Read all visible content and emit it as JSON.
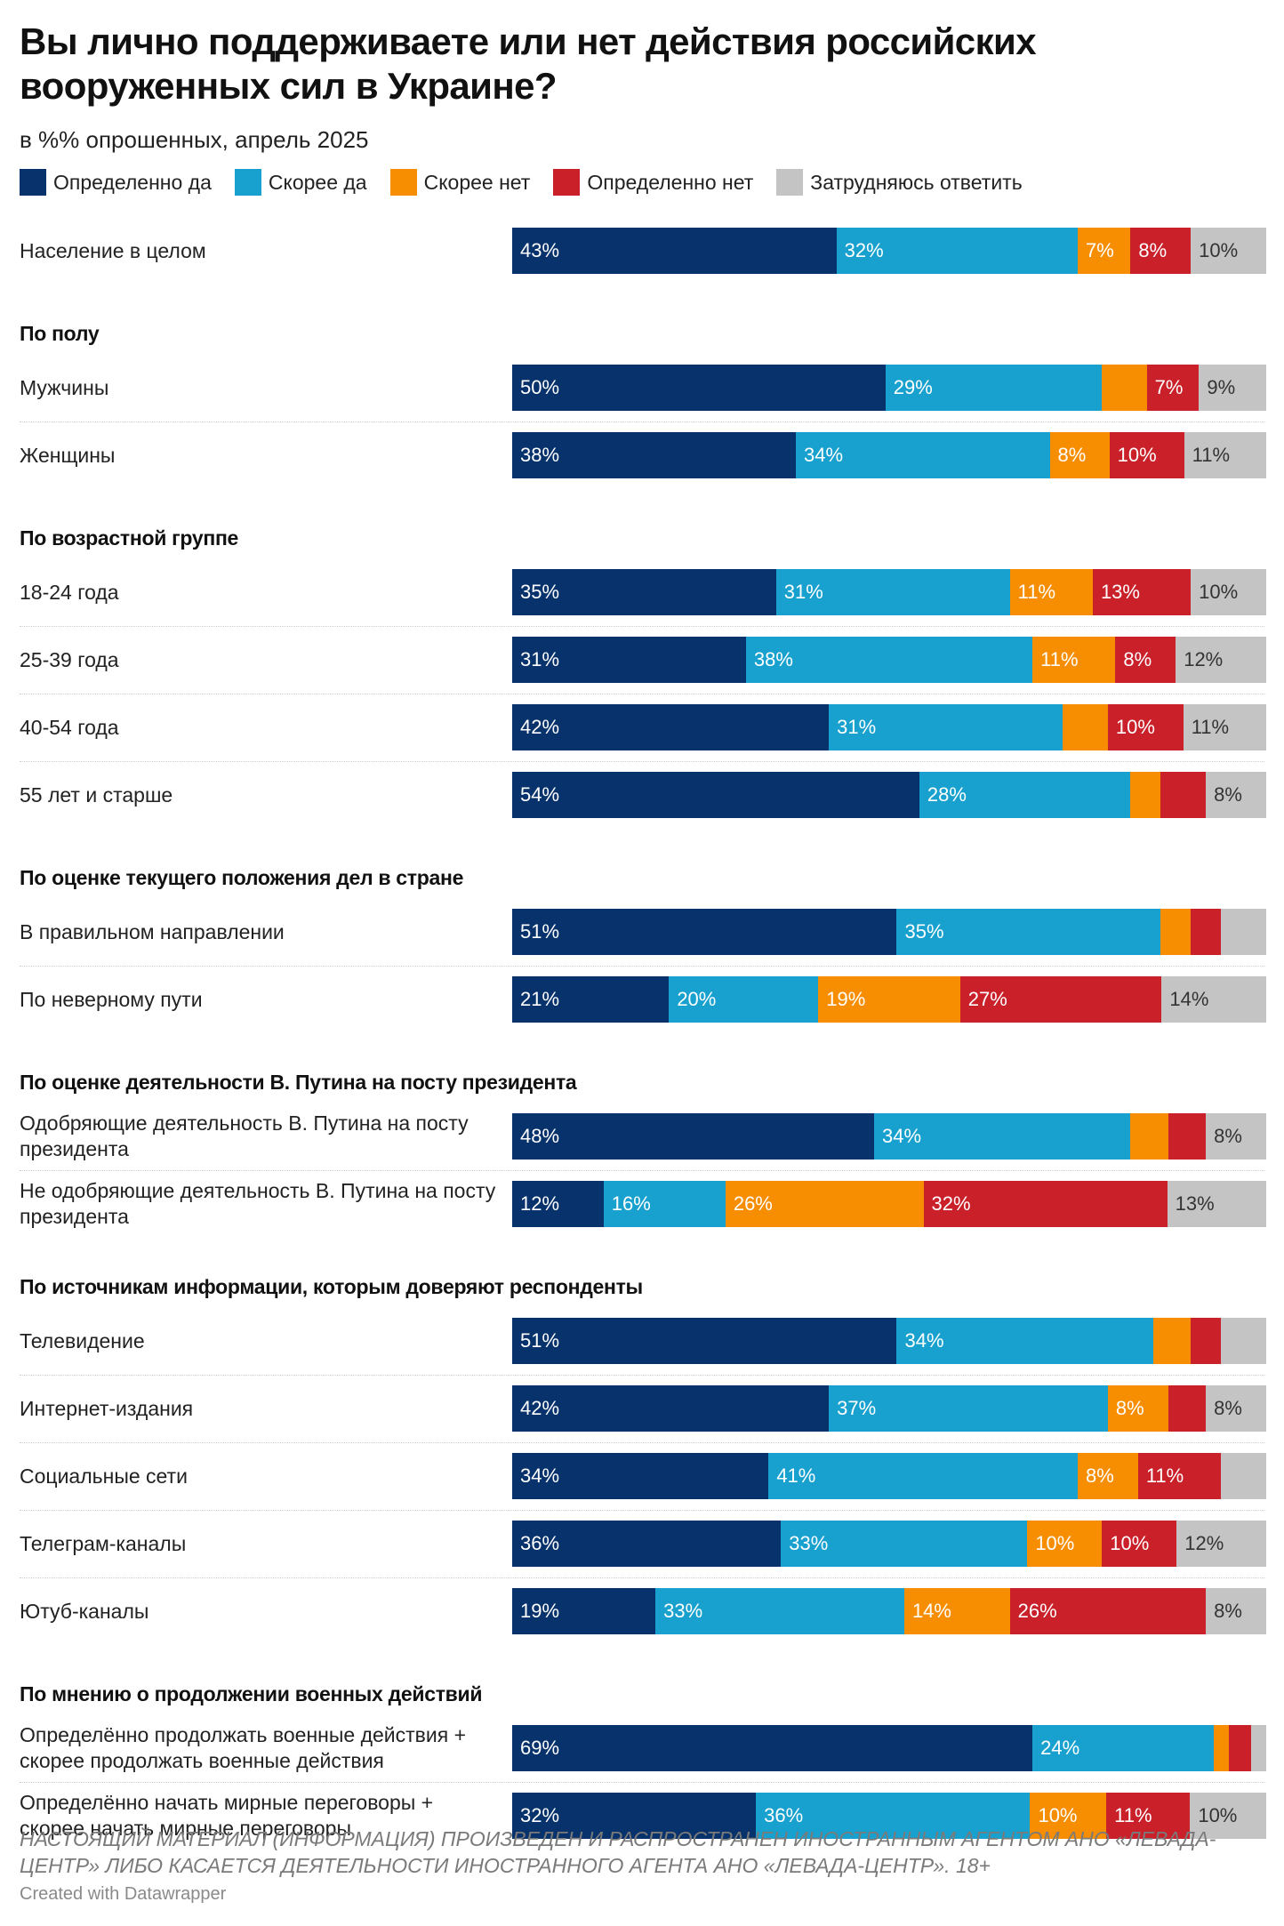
{
  "title": "Вы лично поддерживаете или нет действия российских вооруженных сил в Украине?",
  "subtitle": "в %% опрошенных, апрель 2025",
  "footnote": "НАСТОЯЩИЙ МАТЕРИАЛ (ИНФОРМАЦИЯ) ПРОИЗВЕДЕН И РАСПРОСТРАНЕН ИНОСТРАННЫМ АГЕНТОМ АНО «ЛЕВАДА-ЦЕНТР» ЛИБО КАСАЕТСЯ ДЕЯТЕЛЬНОСТИ ИНОСТРАННОГО АГЕНТА АНО «ЛЕВАДА-ЦЕНТР». 18+",
  "credit": "Created with Datawrapper",
  "chart_data": {
    "type": "bar",
    "orientation": "horizontal",
    "stacked": true,
    "normalized": true,
    "title": "Вы лично поддерживаете или нет действия российских вооруженных сил в Украине?",
    "subtitle": "в %% опрошенных, апрель 2025",
    "unit": "%",
    "legend_position": "top",
    "series": [
      {
        "name": "Определенно да",
        "color": "#08326b",
        "text_color": "#ffffff"
      },
      {
        "name": "Скорее да",
        "color": "#18a1cf",
        "text_color": "#ffffff"
      },
      {
        "name": "Скорее нет",
        "color": "#f78e02",
        "text_color": "#ffffff"
      },
      {
        "name": "Определенно нет",
        "color": "#c9202a",
        "text_color": "#ffffff"
      },
      {
        "name": "Затрудняюсь ответить",
        "color": "#c4c4c4",
        "text_color": "#333333"
      }
    ],
    "groups": [
      {
        "title": "",
        "rows": [
          {
            "label": "Население в целом",
            "values": [
              43,
              32,
              7,
              8,
              10
            ]
          }
        ]
      },
      {
        "title": "По полу",
        "rows": [
          {
            "label": "Мужчины",
            "values": [
              50,
              29,
              6,
              7,
              9
            ]
          },
          {
            "label": "Женщины",
            "values": [
              38,
              34,
              8,
              10,
              11
            ]
          }
        ]
      },
      {
        "title": "По возрастной группе",
        "rows": [
          {
            "label": "18-24 года",
            "values": [
              35,
              31,
              11,
              13,
              10
            ]
          },
          {
            "label": "25-39 года",
            "values": [
              31,
              38,
              11,
              8,
              12
            ]
          },
          {
            "label": "40-54 года",
            "values": [
              42,
              31,
              6,
              10,
              11
            ]
          },
          {
            "label": "55 лет и старше",
            "values": [
              54,
              28,
              4,
              6,
              8
            ]
          }
        ]
      },
      {
        "title": "По оценке текущего положения дел в стране",
        "rows": [
          {
            "label": "В правильном направлении",
            "values": [
              51,
              35,
              4,
              4,
              6
            ]
          },
          {
            "label": "По неверному пути",
            "values": [
              21,
              20,
              19,
              27,
              14
            ]
          }
        ]
      },
      {
        "title": "По оценке деятельности В. Путина на посту президента",
        "rows": [
          {
            "label": "Одобряющие деятельность В. Путина на посту президента",
            "values": [
              48,
              34,
              5,
              5,
              8
            ]
          },
          {
            "label": "Не одобряющие деятельность В. Путина на посту президента",
            "values": [
              12,
              16,
              26,
              32,
              13
            ]
          }
        ]
      },
      {
        "title": "По источникам информации, которым доверяют респонденты",
        "rows": [
          {
            "label": "Телевидение",
            "values": [
              51,
              34,
              5,
              4,
              6
            ]
          },
          {
            "label": "Интернет-издания",
            "values": [
              42,
              37,
              8,
              5,
              8
            ]
          },
          {
            "label": "Социальные сети",
            "values": [
              34,
              41,
              8,
              11,
              6
            ]
          },
          {
            "label": "Телеграм-каналы",
            "values": [
              36,
              33,
              10,
              10,
              12
            ]
          },
          {
            "label": "Ютуб-каналы",
            "values": [
              19,
              33,
              14,
              26,
              8
            ]
          }
        ]
      },
      {
        "title": "По мнению о продолжении военных действий",
        "rows": [
          {
            "label": "Определённо продолжать военные действия + скорее продолжать военные действия",
            "values": [
              69,
              24,
              2,
              3,
              2
            ]
          },
          {
            "label": "Определённо начать мирные переговоры + скорее начать мирные переговоры",
            "values": [
              32,
              36,
              10,
              11,
              10
            ]
          }
        ]
      }
    ]
  }
}
